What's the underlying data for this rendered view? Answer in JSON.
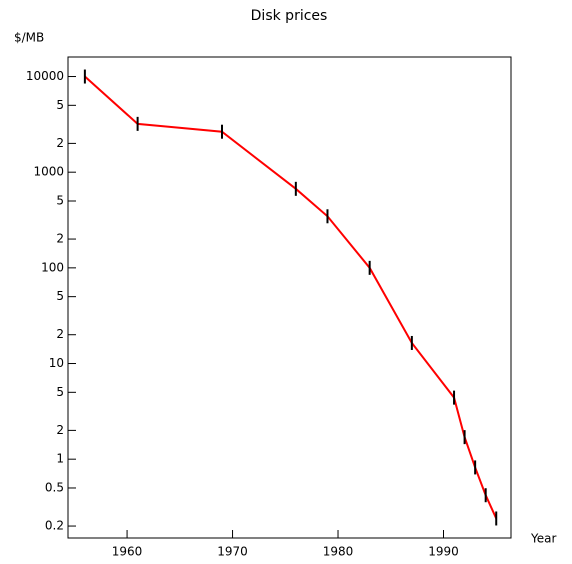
{
  "chart_data": {
    "type": "line",
    "title": "Disk prices",
    "y_label": "$/MB",
    "x_label": "Year",
    "log_y": true,
    "x": [
      1956,
      1961,
      1969,
      1976,
      1979,
      1983,
      1987,
      1991,
      1992,
      1993,
      1994,
      1995
    ],
    "series": [
      {
        "color": "#ff0000",
        "marker_color": "#000000",
        "values": [
          10000,
          3200,
          2650,
          670,
          346,
          100,
          16.4,
          4.4,
          1.7,
          0.82,
          0.42,
          0.24
        ]
      }
    ],
    "xlim": [
      1954.4,
      1996.4
    ],
    "xticks": [
      1960,
      1970,
      1980,
      1990
    ],
    "ylim": [
      0.15,
      16000
    ],
    "yticks": [
      {
        "value": 0.2,
        "label": "0.2"
      },
      {
        "value": 0.5,
        "label": "0.5"
      },
      1,
      {
        "value": 2,
        "label": "2"
      },
      {
        "value": 5,
        "label": "5"
      },
      10,
      {
        "value": 20,
        "label": "2"
      },
      {
        "value": 50,
        "label": "5"
      },
      100,
      {
        "value": 200,
        "label": "2"
      },
      {
        "value": 500,
        "label": "5"
      },
      1000,
      {
        "value": 2000,
        "label": "2"
      },
      {
        "value": 5000,
        "label": "5"
      },
      10000
    ]
  }
}
